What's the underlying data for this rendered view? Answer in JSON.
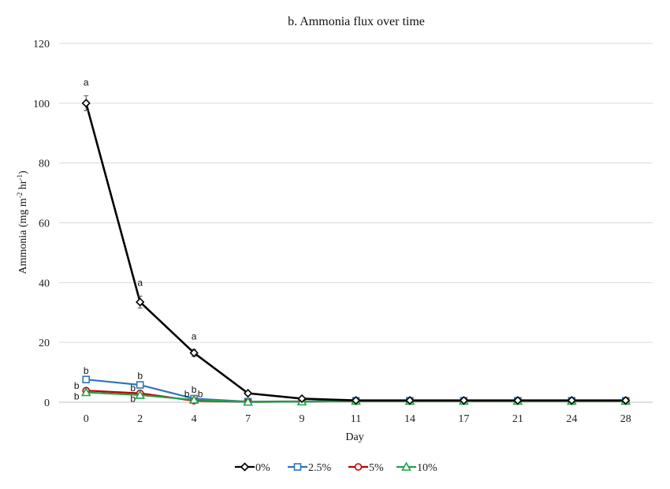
{
  "chart_data": {
    "type": "line",
    "title": "b. Ammonia flux over time",
    "xlabel": "Day",
    "ylabel": "Ammonia (mg m-2 hr-1)",
    "categories": [
      "0",
      "2",
      "4",
      "7",
      "9",
      "11",
      "14",
      "17",
      "21",
      "24",
      "28"
    ],
    "ylim": [
      0,
      120
    ],
    "yticks": [
      0,
      20,
      40,
      60,
      80,
      100,
      120
    ],
    "grid": true,
    "legend_position": "bottom",
    "series": [
      {
        "name": "0%",
        "color": "#000000",
        "marker": "diamond",
        "values": [
          100,
          33.5,
          16.5,
          3,
          1.2,
          0.6,
          0.6,
          0.6,
          0.6,
          0.6,
          0.6
        ],
        "error": [
          2.5,
          2,
          1.2,
          0,
          0,
          0,
          0,
          0,
          0,
          0,
          0
        ]
      },
      {
        "name": "2.5%",
        "color": "#2e75b6",
        "marker": "square",
        "values": [
          7.6,
          5.8,
          1.2,
          0.2,
          0.3,
          0.5,
          0.5,
          0.5,
          0.5,
          0.5,
          0.5
        ]
      },
      {
        "name": "5%",
        "color": "#c00000",
        "marker": "circle",
        "values": [
          3.9,
          3.0,
          0.5,
          0.1,
          0.2,
          0.4,
          0.4,
          0.4,
          0.4,
          0.4,
          0.4
        ]
      },
      {
        "name": "10%",
        "color": "#22a04b",
        "marker": "triangle",
        "values": [
          3.3,
          2.4,
          0.8,
          0.1,
          0.2,
          0.4,
          0.4,
          0.4,
          0.4,
          0.4,
          0.4
        ]
      }
    ],
    "annotations": [
      {
        "text": "a",
        "x": "0",
        "y": 107
      },
      {
        "text": "a",
        "x": "2",
        "y": 40
      },
      {
        "text": "a",
        "x": "4",
        "y": 22
      },
      {
        "text": "b",
        "x": "0",
        "y": 10.5
      },
      {
        "text": "b",
        "x": "0",
        "y": 5.5,
        "dx": -12
      },
      {
        "text": "b",
        "x": "0",
        "y": 2.0,
        "dx": -12
      },
      {
        "text": "b",
        "x": "2",
        "y": 8.8
      },
      {
        "text": "b",
        "x": "2",
        "y": 4.8,
        "dx": -9
      },
      {
        "text": "b",
        "x": "2",
        "y": 1.2,
        "dx": -9
      },
      {
        "text": "b",
        "x": "4",
        "y": 2.8,
        "dx": -9
      },
      {
        "text": "b",
        "x": "4",
        "y": 4.2
      },
      {
        "text": "b",
        "x": "4",
        "y": 2.8,
        "dx": 8
      }
    ]
  }
}
